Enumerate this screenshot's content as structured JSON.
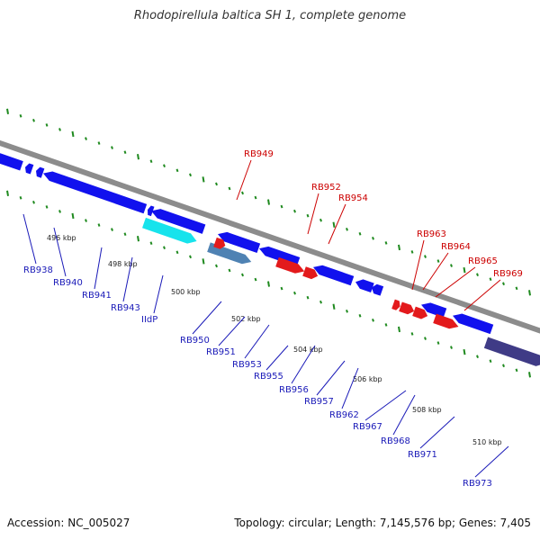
{
  "title": "Rhodopirellula baltica SH 1, complete genome",
  "footer": {
    "accession": "Accession: NC_005027",
    "summary": "Topology: circular; Length: 7,145,576 bp; Genes: 7,405"
  },
  "colors": {
    "backbone": "#8c8c8c",
    "tick_green": "#1f8a1f",
    "forward_gene": "#e31a1c",
    "reverse_gene": "#1111ee",
    "highlight_cyan": "#17e3ec",
    "highlight_steel": "#4f82b3",
    "highlight_purple": "#3f3b86",
    "label_red": "#cc0000",
    "label_blue": "#1a1ab8"
  },
  "kbp_ticks": [
    "496 kbp",
    "498 kbp",
    "500 kbp",
    "502 kbp",
    "504 kbp",
    "506 kbp",
    "508 kbp",
    "510 kbp"
  ],
  "forward_labels": [
    "RB949",
    "RB952",
    "RB954",
    "RB963",
    "RB964",
    "RB965",
    "RB969"
  ],
  "reverse_labels": [
    "RB938",
    "RB940",
    "RB941",
    "RB943",
    "IIdP",
    "RB950",
    "RB951",
    "RB953",
    "RB955",
    "RB956",
    "RB957",
    "RB962",
    "RB967",
    "RB968",
    "RB971",
    "RB973"
  ]
}
